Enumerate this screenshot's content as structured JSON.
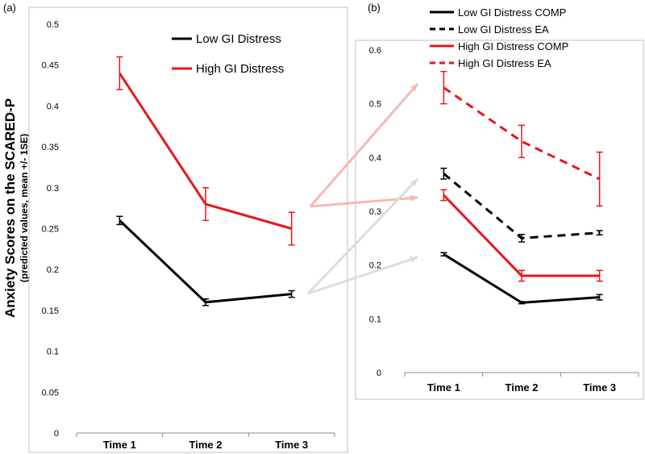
{
  "figure": {
    "ylabel": "Anxiety Scores on the SCARED-P",
    "ylabel_sub": "(predicted values, mean +/- 1SE)"
  },
  "chart_data": [
    {
      "type": "line",
      "panel": "(a)",
      "categories": [
        "Time 1",
        "Time 2",
        "Time 3"
      ],
      "ylim": [
        0,
        0.5
      ],
      "yticks": [
        0,
        0.05,
        0.1,
        0.15,
        0.2,
        0.25,
        0.3,
        0.35,
        0.4,
        0.45,
        0.5
      ],
      "ytick_labels": [
        "0",
        "0.05",
        "0.1",
        "0.15",
        "0.2",
        "0.25",
        "0.3",
        "0.35",
        "0.4",
        "0.45",
        "0.5"
      ],
      "legend_position": "top-right",
      "series": [
        {
          "name": "Low GI Distress",
          "color": "#000000",
          "dash": "solid",
          "values": [
            0.26,
            0.16,
            0.17
          ],
          "errors": [
            0.005,
            0.004,
            0.004
          ]
        },
        {
          "name": "High GI Distress",
          "color": "#e8161b",
          "dash": "solid",
          "values": [
            0.44,
            0.28,
            0.25
          ],
          "errors": [
            0.02,
            0.02,
            0.02
          ]
        }
      ]
    },
    {
      "type": "line",
      "panel": "(b)",
      "categories": [
        "Time 1",
        "Time 2",
        "Time 3"
      ],
      "ylim": [
        0,
        0.6
      ],
      "yticks": [
        0,
        0.1,
        0.2,
        0.3,
        0.4,
        0.5,
        0.6
      ],
      "ytick_labels": [
        "0",
        "0.1",
        "0.2",
        "0.3",
        "0.4",
        "0.5",
        "0.6"
      ],
      "legend_position": "top",
      "series": [
        {
          "name": "Low GI Distress COMP",
          "color": "#000000",
          "dash": "solid",
          "values": [
            0.22,
            0.13,
            0.14
          ],
          "errors": [
            0.003,
            0.002,
            0.005
          ]
        },
        {
          "name": "Low GI Distress EA",
          "color": "#000000",
          "dash": "dashed",
          "values": [
            0.37,
            0.25,
            0.26
          ],
          "errors": [
            0.01,
            0.007,
            0.004
          ]
        },
        {
          "name": "High GI Distress COMP",
          "color": "#e8161b",
          "dash": "solid",
          "values": [
            0.33,
            0.18,
            0.18
          ],
          "errors": [
            0.01,
            0.01,
            0.01
          ]
        },
        {
          "name": "High GI Distress EA",
          "color": "#e8161b",
          "dash": "dashed",
          "values": [
            0.53,
            0.43,
            0.36
          ],
          "errors": [
            0.03,
            0.03,
            0.05
          ]
        }
      ]
    }
  ]
}
